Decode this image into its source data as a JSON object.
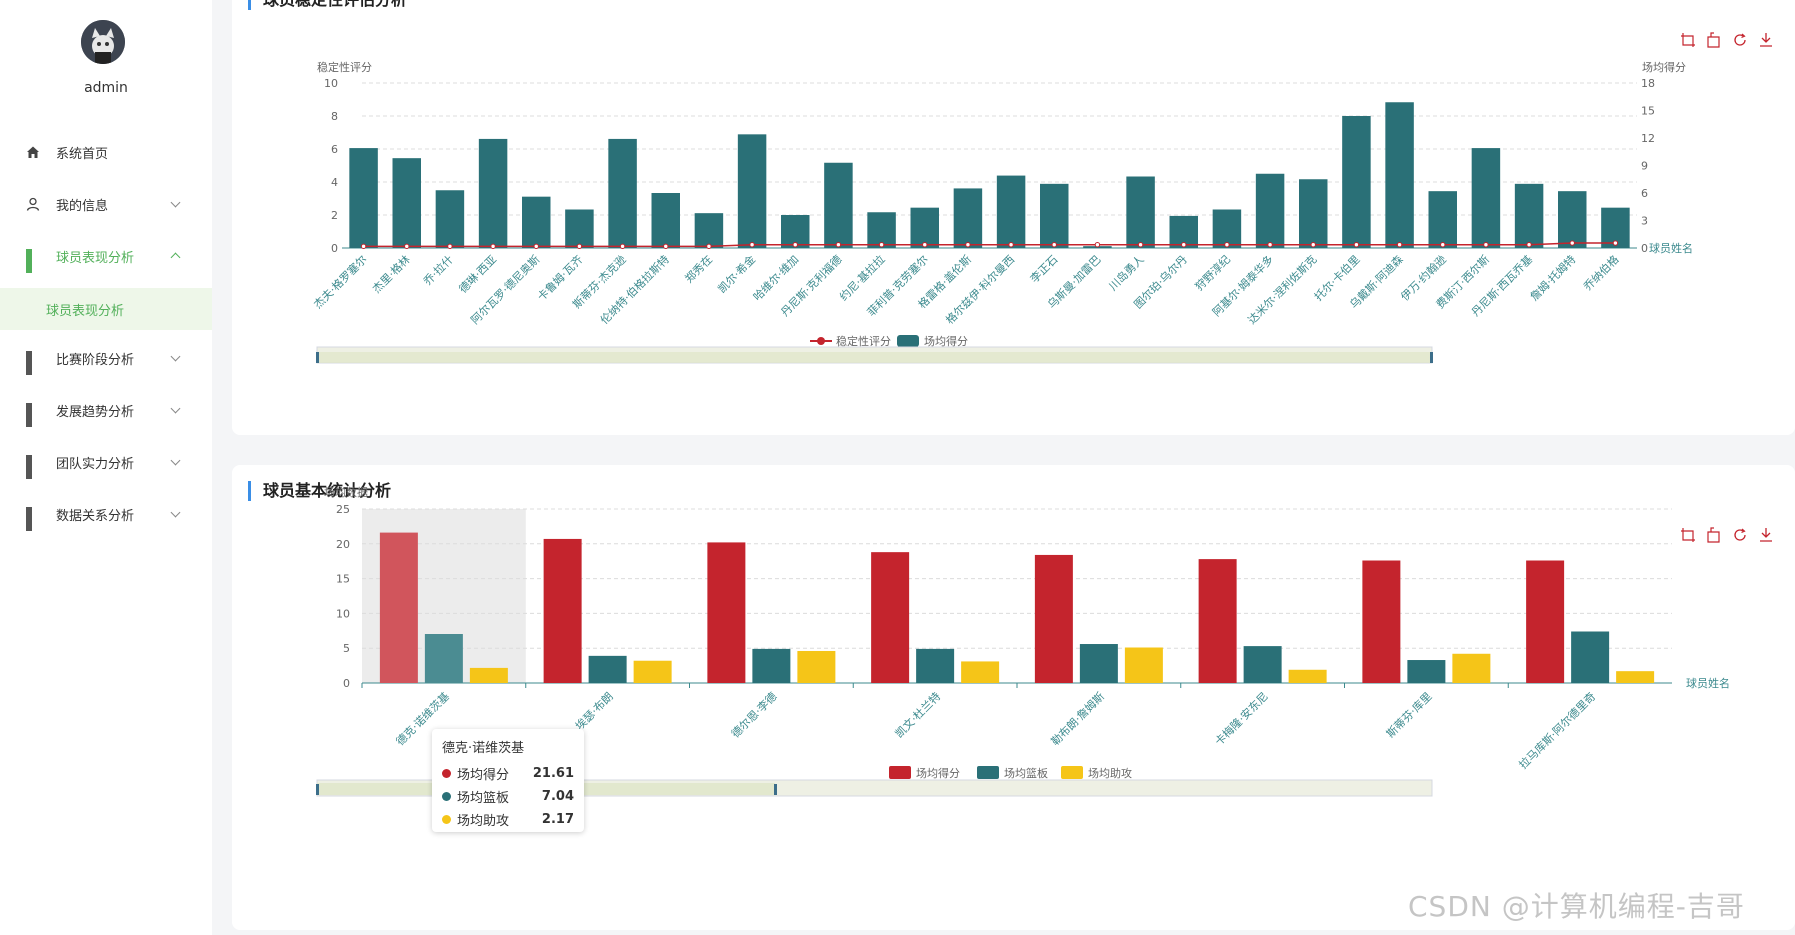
{
  "user": {
    "name": "admin"
  },
  "menu": [
    {
      "label": "系统首页",
      "icon": "home-icon"
    },
    {
      "label": "我的信息",
      "icon": "user-icon"
    },
    {
      "label": "球员表现分析",
      "icon": "grid-icon",
      "active": true
    },
    {
      "label": "比赛阶段分析",
      "icon": "grid-icon"
    },
    {
      "label": "发展趋势分析",
      "icon": "grid-icon"
    },
    {
      "label": "团队实力分析",
      "icon": "grid-icon"
    },
    {
      "label": "数据关系分析",
      "icon": "grid-icon"
    }
  ],
  "submenu": {
    "label": "球员表现分析"
  },
  "card1": {
    "title": "球员稳定性评估分析"
  },
  "card2": {
    "title": "球员基本统计分析"
  },
  "colors": {
    "accent": "#52b05a",
    "teal": "#2a7077",
    "red": "#c4242d",
    "yellow": "#f5c518"
  },
  "chart_data": [
    {
      "type": "bar",
      "title": "球员稳定性评估分析",
      "ylabel_left": "稳定性评分",
      "ylabel_right": "场均得分",
      "xlabel": "球员姓名",
      "ylim_left": [
        0,
        10
      ],
      "ylim_right": [
        0,
        18
      ],
      "yticks_left": [
        0,
        2,
        4,
        6,
        8,
        10
      ],
      "yticks_right": [
        0,
        3,
        6,
        9,
        12,
        15,
        18
      ],
      "categories": [
        "杰夫·格罗塞尔",
        "杰里·格林",
        "乔·拉什",
        "德琳·西亚",
        "阿尔瓦罗·德尼奥斯",
        "卡鲁姆·瓦齐",
        "斯蒂芬·杰克逊",
        "伦纳特·伯格拉斯特",
        "郑秀在",
        "凯尔·希金",
        "哈维尔·维加",
        "丹尼斯·克利福德",
        "约尼·基拉拉",
        "菲利普·克劳塞尔",
        "格雷格·盖伦斯",
        "格尔兹伊·科尔曼西",
        "李正石",
        "乌斯曼·加雷巴",
        "川岛勇人",
        "图尔珀·乌尔丹",
        "狩野淳纪",
        "阿基尔·姆泰华多",
        "达米尔·涅利佐斯克",
        "托尔·卡伯里",
        "乌戴斯·阿迪森",
        "伊万·约翰逊",
        "费斯汀·西尔斯",
        "丹尼斯·西瓦乔基",
        "詹姆·托姆特",
        "乔纳伯格"
      ],
      "series": [
        {
          "name": "稳定性评分",
          "type": "line",
          "values": [
            0.1,
            0.1,
            0.1,
            0.1,
            0.1,
            0.1,
            0.1,
            0.1,
            0.1,
            0.2,
            0.2,
            0.2,
            0.2,
            0.2,
            0.2,
            0.2,
            0.2,
            0.2,
            0.2,
            0.2,
            0.2,
            0.2,
            0.2,
            0.2,
            0.2,
            0.2,
            0.2,
            0.2,
            0.3,
            0.3
          ]
        },
        {
          "name": "场均得分",
          "type": "bar",
          "values": [
            10.9,
            9.8,
            6.3,
            11.9,
            5.6,
            4.2,
            11.9,
            6.0,
            3.8,
            12.4,
            3.6,
            9.3,
            3.9,
            4.4,
            6.5,
            7.9,
            7.0,
            0.2,
            7.8,
            3.5,
            4.2,
            8.1,
            7.5,
            14.4,
            15.9,
            6.2,
            10.9,
            7.0,
            6.2,
            4.4
          ]
        }
      ],
      "legend": [
        "稳定性评分",
        "场均得分"
      ],
      "legend_position": "bottom"
    },
    {
      "type": "bar",
      "title": "球员基本统计分析",
      "ylabel": "场均数据",
      "xlabel": "球员姓名",
      "ylim": [
        0,
        25
      ],
      "yticks": [
        0,
        5,
        10,
        15,
        20,
        25
      ],
      "categories": [
        "德克·诺维茨基",
        "埃瑟·布朗",
        "德尔恩·李德",
        "凯文·杜兰特",
        "勒布朗·詹姆斯",
        "卡梅隆·安东尼",
        "斯蒂芬·库里",
        "拉马库斯·阿尔德里奇"
      ],
      "series": [
        {
          "name": "场均得分",
          "values": [
            21.61,
            20.7,
            20.2,
            18.8,
            18.4,
            17.8,
            17.6,
            17.6
          ]
        },
        {
          "name": "场均篮板",
          "values": [
            7.04,
            3.9,
            4.9,
            4.9,
            5.6,
            5.3,
            3.3,
            7.4
          ]
        },
        {
          "name": "场均助攻",
          "values": [
            2.17,
            3.2,
            4.6,
            3.1,
            5.1,
            1.9,
            4.2,
            1.7
          ]
        }
      ],
      "legend": [
        "场均得分",
        "场均篮板",
        "场均助攻"
      ],
      "legend_position": "bottom",
      "tooltip": {
        "title": "德克·诺维茨基",
        "rows": [
          {
            "name": "场均得分",
            "value": "21.61"
          },
          {
            "name": "场均篮板",
            "value": "7.04"
          },
          {
            "name": "场均助攻",
            "value": "2.17"
          }
        ]
      }
    }
  ],
  "watermark": "CSDN @计算机编程-吉哥"
}
